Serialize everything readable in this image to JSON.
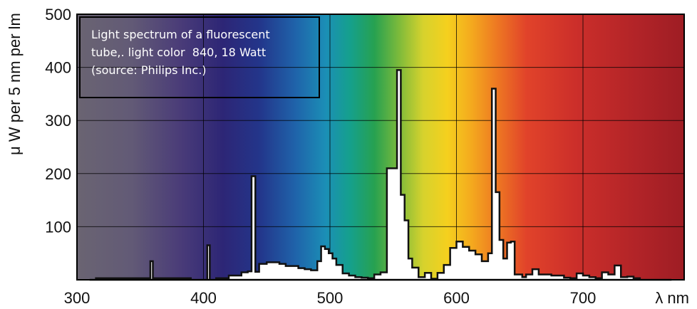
{
  "chart_data": {
    "type": "area",
    "title": "",
    "annotation": [
      "Light spectrum of a fluorescent",
      "tube,. light color  840, 18 Watt",
      "(source: Philips Inc.)"
    ],
    "ylabel": "μ W per 5 nm per lm",
    "xlabel": "λ nm",
    "xlim": [
      300,
      780
    ],
    "ylim": [
      0,
      500
    ],
    "x_ticks": [
      300,
      400,
      500,
      600,
      700
    ],
    "y_ticks": [
      100,
      200,
      300,
      400,
      500
    ],
    "grid": true,
    "background": "visible light colour spectrum",
    "fill_color": "#ffffff",
    "line_color": "#111111",
    "series": [
      {
        "x": [
          310,
          315,
          355,
          358,
          360,
          365,
          390,
          400,
          403,
          405,
          410,
          415,
          420,
          425,
          430,
          435,
          438,
          441,
          444,
          450,
          455,
          460,
          465,
          470,
          475,
          480,
          485,
          490,
          493,
          496,
          499,
          502,
          505,
          510,
          515,
          520,
          525,
          530,
          535,
          540,
          545,
          550,
          553,
          556,
          559,
          562,
          565,
          570,
          575,
          580,
          585,
          590,
          595,
          600,
          605,
          610,
          615,
          620,
          625,
          628,
          631,
          634,
          637,
          640,
          643,
          646,
          649,
          652,
          655,
          660,
          665,
          670,
          675,
          680,
          685,
          690,
          695,
          700,
          705,
          710,
          715,
          720,
          725,
          730,
          735,
          740,
          745,
          750,
          755,
          760,
          765,
          770
        ],
        "y": [
          0,
          3,
          3,
          35,
          3,
          3,
          0,
          0,
          65,
          0,
          3,
          3,
          8,
          8,
          14,
          16,
          195,
          15,
          30,
          33,
          33,
          30,
          26,
          26,
          22,
          20,
          18,
          35,
          63,
          58,
          50,
          40,
          28,
          12,
          8,
          5,
          4,
          3,
          10,
          14,
          210,
          210,
          395,
          160,
          112,
          40,
          23,
          5,
          13,
          2,
          13,
          28,
          60,
          72,
          62,
          55,
          48,
          35,
          50,
          360,
          165,
          75,
          40,
          70,
          72,
          10,
          10,
          5,
          10,
          20,
          10,
          10,
          8,
          8,
          4,
          3,
          12,
          8,
          5,
          3,
          14,
          10,
          27,
          5,
          6,
          3,
          0,
          0,
          0,
          0,
          0,
          0
        ]
      }
    ]
  }
}
